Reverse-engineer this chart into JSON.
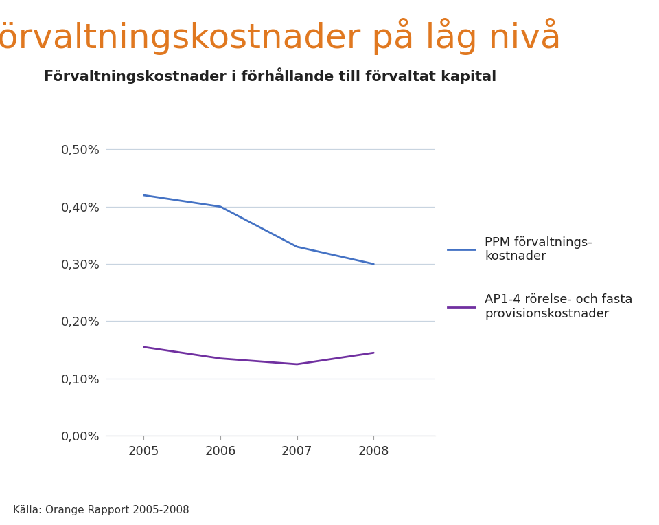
{
  "title": "Förvaltningskostnader på låg nivå",
  "subtitle": "Förvaltningskostnader i förhållande till förvaltat kapital",
  "title_color": "#E07820",
  "subtitle_color": "#222222",
  "years": [
    2005,
    2006,
    2007,
    2008
  ],
  "ppm_values": [
    0.0042,
    0.004,
    0.0033,
    0.003
  ],
  "ap14_values": [
    0.00155,
    0.00135,
    0.00125,
    0.00145
  ],
  "ppm_color": "#4472C4",
  "ap14_color": "#7030A0",
  "ylim": [
    0.0,
    0.0055
  ],
  "yticks": [
    0.0,
    0.001,
    0.002,
    0.003,
    0.004,
    0.005
  ],
  "ytick_labels": [
    "0,00%",
    "0,10%",
    "0,20%",
    "0,30%",
    "0,40%",
    "0,50%"
  ],
  "grid_color": "#C8D4E0",
  "legend_ppm": "PPM förvaltnings-\nkostnader",
  "legend_ap14": "AP1-4 rörelse- och fasta\nprovisionskostnader",
  "source_text": "Källa: Orange Rapport 2005-2008",
  "background_color": "#FFFFFF",
  "line_width": 2.0,
  "title_fontsize": 36,
  "subtitle_fontsize": 15,
  "tick_fontsize": 13,
  "legend_fontsize": 13,
  "source_fontsize": 11
}
